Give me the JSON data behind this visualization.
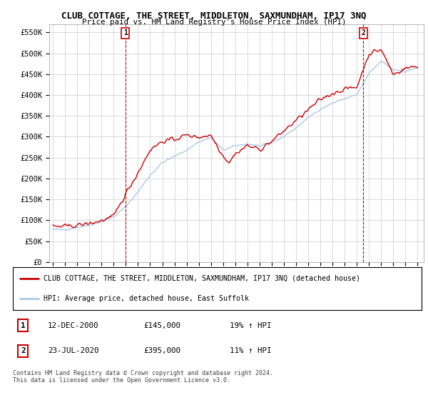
{
  "title": "CLUB COTTAGE, THE STREET, MIDDLETON, SAXMUNDHAM, IP17 3NQ",
  "subtitle": "Price paid vs. HM Land Registry's House Price Index (HPI)",
  "ylabel_ticks": [
    "£0",
    "£50K",
    "£100K",
    "£150K",
    "£200K",
    "£250K",
    "£300K",
    "£350K",
    "£400K",
    "£450K",
    "£500K",
    "£550K"
  ],
  "ytick_values": [
    0,
    50000,
    100000,
    150000,
    200000,
    250000,
    300000,
    350000,
    400000,
    450000,
    500000,
    550000
  ],
  "ylim": [
    0,
    570000
  ],
  "legend_line1": "CLUB COTTAGE, THE STREET, MIDDLETON, SAXMUNDHAM, IP17 3NQ (detached house)",
  "legend_line2": "HPI: Average price, detached house, East Suffolk",
  "sale1_label": "1",
  "sale1_date": "12-DEC-2000",
  "sale1_price": "£145,000",
  "sale1_hpi": "19% ↑ HPI",
  "sale2_label": "2",
  "sale2_date": "23-JUL-2020",
  "sale2_price": "£395,000",
  "sale2_hpi": "11% ↑ HPI",
  "footer": "Contains HM Land Registry data © Crown copyright and database right 2024.\nThis data is licensed under the Open Government Licence v3.0.",
  "hpi_color": "#aac8e8",
  "price_color": "#cc0000",
  "sale_marker_color": "#cc0000",
  "background_color": "#ffffff",
  "grid_color": "#cccccc",
  "x_start_year": 1995,
  "x_end_year": 2025
}
